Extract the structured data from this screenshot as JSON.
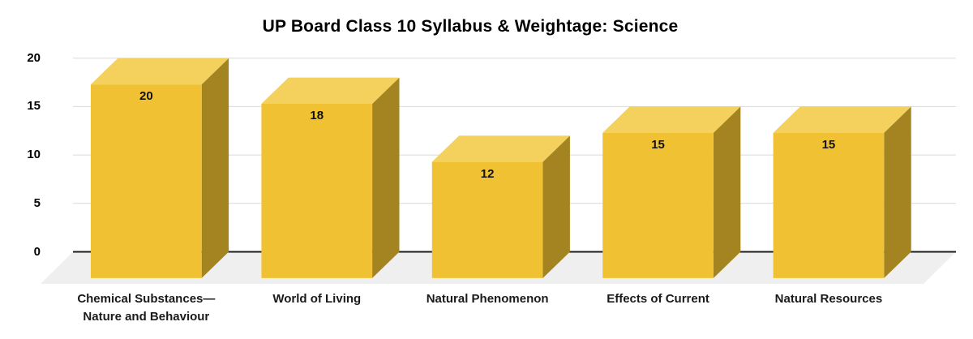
{
  "title": "UP Board Class 10 Syllabus & Weightage: Science",
  "chart_data": {
    "type": "bar",
    "style": "3d-column",
    "title": "UP Board Class 10 Syllabus & Weightage: Science",
    "categories": [
      "Chemical Substances—Nature and Behaviour",
      "World of Living",
      "Natural Phenomenon",
      "Effects of Current",
      "Natural Resources"
    ],
    "values": [
      20,
      18,
      12,
      15,
      15
    ],
    "bar_labels": [
      "20",
      "18",
      "12",
      "15",
      "15"
    ],
    "xlabel": "",
    "ylabel": "",
    "y_ticks": [
      0,
      5,
      10,
      15,
      20
    ],
    "ylim": [
      0,
      20
    ],
    "grid": true,
    "legend": false,
    "colors": {
      "bar_front": "#F0C233",
      "bar_top": "#F4D05C",
      "bar_side": "#A48421",
      "floor": "#EFEFEF",
      "gridline": "#D9D9D9",
      "zero_line": "#1B1B1B",
      "text": "#000000",
      "background": "#FFFFFF"
    }
  }
}
